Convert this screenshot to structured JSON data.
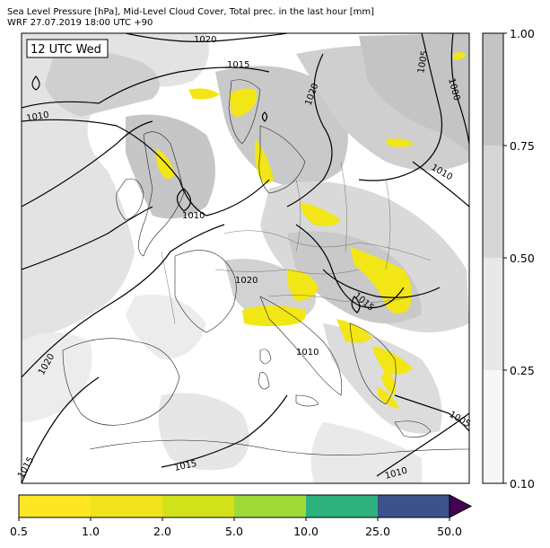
{
  "header": {
    "title_line1": "Sea Level Pressure [hPa], Mid-Level Cloud Cover, Total prec. in the last hour [mm]",
    "title_line2": "WRF 27.07.2019 18:00 UTC +90"
  },
  "map": {
    "time_label": "12 UTC Wed",
    "isobar_labels": [
      "1020",
      "1015",
      "1010",
      "1020",
      "1005",
      "1000",
      "1010",
      "1010",
      "1015",
      "1020",
      "1015",
      "1010",
      "1005",
      "1015",
      "1020",
      "1010"
    ]
  },
  "cloud_colorbar": {
    "ticks": [
      "0.10",
      "0.25",
      "0.50",
      "0.75",
      "1.00"
    ],
    "colors": [
      "#f7f7f7",
      "#e8e8e8",
      "#d6d6d6",
      "#c4c4c4"
    ]
  },
  "precip_colorbar": {
    "ticks": [
      "0.5",
      "1.0",
      "2.0",
      "5.0",
      "10.0",
      "25.0",
      "50.0"
    ],
    "colors": [
      "#fde725",
      "#f0e31c",
      "#d2e21b",
      "#a0da39",
      "#2db27d",
      "#3b528b",
      "#440154"
    ]
  }
}
